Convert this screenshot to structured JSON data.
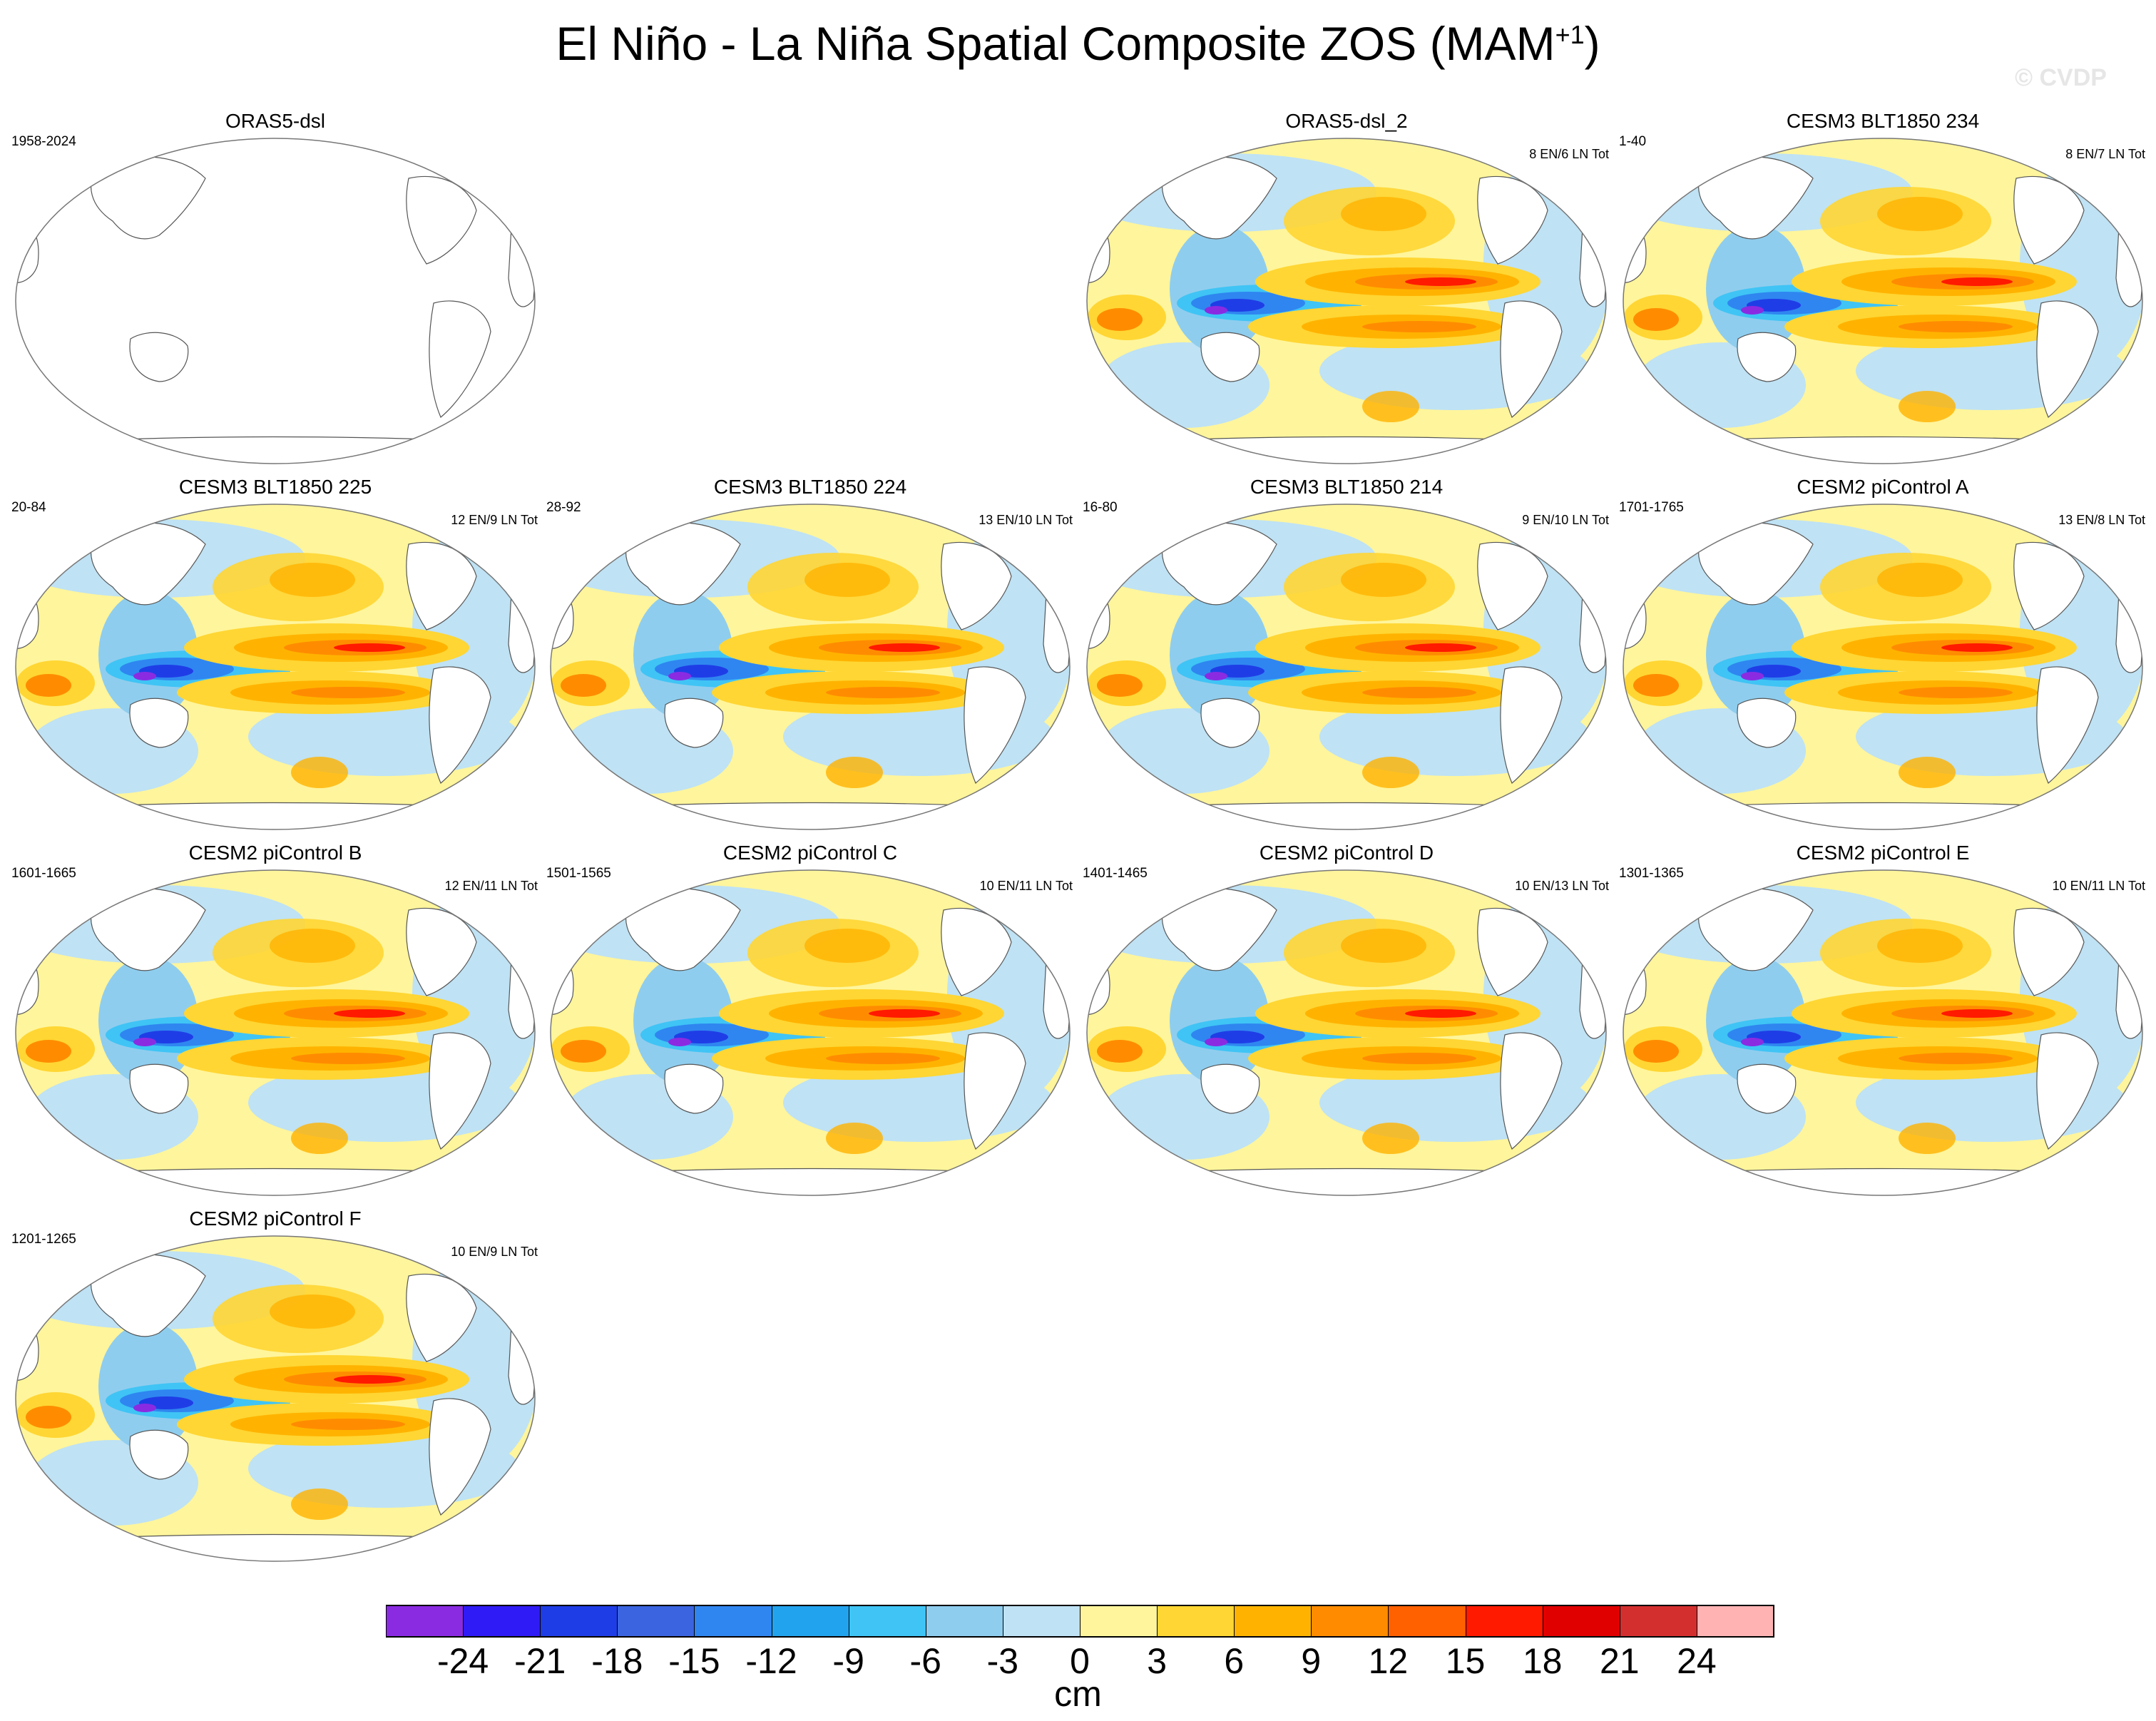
{
  "title": {
    "main": "El Niño - La Niña Spatial Composite ZOS (MAM",
    "sup": "+1",
    "close": ")"
  },
  "watermark": "© CVDP",
  "chart_data": {
    "type": "heatmap",
    "variable": "ZOS",
    "units": "cm",
    "colorbar": {
      "levels": [
        -24,
        -21,
        -18,
        -15,
        -12,
        -9,
        -6,
        -3,
        0,
        3,
        6,
        9,
        12,
        15,
        18,
        21,
        24
      ],
      "labels": [
        "-24",
        "-21",
        "-18",
        "-15",
        "-12",
        "-9",
        "-6",
        "-3",
        "0",
        "3",
        "6",
        "9",
        "12",
        "15",
        "18",
        "21",
        "24"
      ],
      "colors": [
        "#8a2be2",
        "#2f1bf5",
        "#1f3de6",
        "#3a64e0",
        "#2f86f0",
        "#22a3ee",
        "#3fc4f5",
        "#8fcdee",
        "#bfe2f4",
        "#fff59c",
        "#ffd633",
        "#ffb300",
        "#ff8c00",
        "#ff6000",
        "#ff1a00",
        "#e00000",
        "#d42f2f",
        "#ffb3b3"
      ]
    },
    "panels": [
      {
        "title": "ORAS5-dsl",
        "years": "1958-2024",
        "counts": "",
        "has_data": false
      },
      {
        "title": "ORAS5-dsl_2",
        "years": "",
        "counts": "8 EN/6 LN Tot",
        "has_data": true
      },
      {
        "title": "CESM3 BLT1850 234",
        "years": "1-40",
        "counts": "8 EN/7 LN Tot",
        "has_data": true
      },
      {
        "title": "CESM3 BLT1850 225",
        "years": "20-84",
        "counts": "12 EN/9 LN Tot",
        "has_data": true
      },
      {
        "title": "CESM3 BLT1850 224",
        "years": "28-92",
        "counts": "13 EN/10 LN Tot",
        "has_data": true
      },
      {
        "title": "CESM3 BLT1850 214",
        "years": "16-80",
        "counts": "9 EN/10 LN Tot",
        "has_data": true
      },
      {
        "title": "CESM2 piControl A",
        "years": "1701-1765",
        "counts": "13 EN/8 LN Tot",
        "has_data": true
      },
      {
        "title": "CESM2 piControl B",
        "years": "1601-1665",
        "counts": "12 EN/11 LN Tot",
        "has_data": true
      },
      {
        "title": "CESM2 piControl C",
        "years": "1501-1565",
        "counts": "10 EN/11 LN Tot",
        "has_data": true
      },
      {
        "title": "CESM2 piControl D",
        "years": "1401-1465",
        "counts": "10 EN/13 LN Tot",
        "has_data": true
      },
      {
        "title": "CESM2 piControl E",
        "years": "1301-1365",
        "counts": "10 EN/11 LN Tot",
        "has_data": true
      },
      {
        "title": "CESM2 piControl F",
        "years": "1201-1265",
        "counts": "10 EN/9 LN Tot",
        "has_data": true
      }
    ]
  }
}
